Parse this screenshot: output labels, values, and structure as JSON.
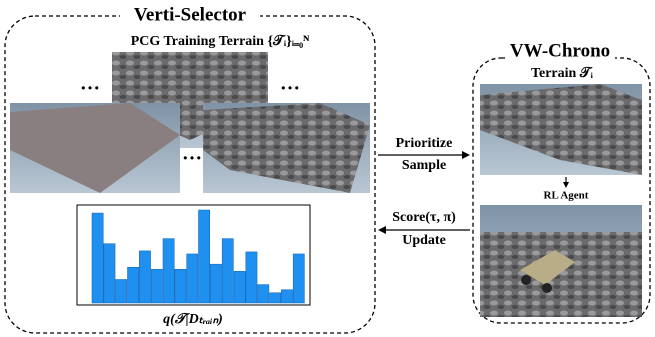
{
  "left_panel": {
    "title": "Verti-Selector",
    "subtitle": "PCG Training Terrain {𝒯ᵢ}ᵢ₌₀ᴺ",
    "ellipsis": "…",
    "histogram": {
      "label": "q(𝒯|Dₜᵣₐᵢₙ)",
      "values": [
        88,
        58,
        23,
        35,
        51,
        33,
        63,
        33,
        48,
        91,
        38,
        63,
        31,
        50,
        18,
        10,
        13,
        48
      ]
    }
  },
  "right_panel": {
    "title": "VW-Chrono",
    "terrain_label": "Terrain 𝒯ᵢ",
    "agent_label": "RL Agent"
  },
  "arrows": {
    "forward": [
      "Prioritize",
      "Sample"
    ],
    "backward": [
      "Score(τ, π)",
      "Update"
    ]
  }
}
